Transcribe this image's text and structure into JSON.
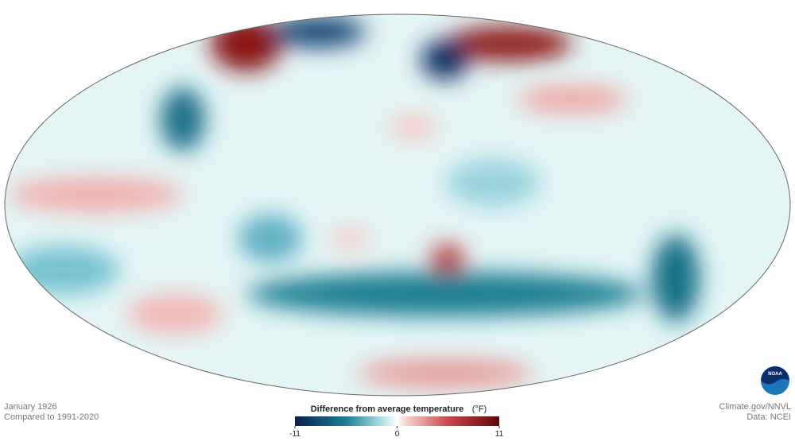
{
  "map": {
    "date": "January 1926",
    "baseline": "Compared to 1991-2020"
  },
  "legend": {
    "title": "Difference from average temperature",
    "unit": "(°F)",
    "range": [
      -11,
      11
    ],
    "ticks": [
      -11,
      0,
      11
    ]
  },
  "credits": {
    "source": "Climate.gov/NNVL",
    "data": "Data: NCEI",
    "logo": "NOAA"
  }
}
